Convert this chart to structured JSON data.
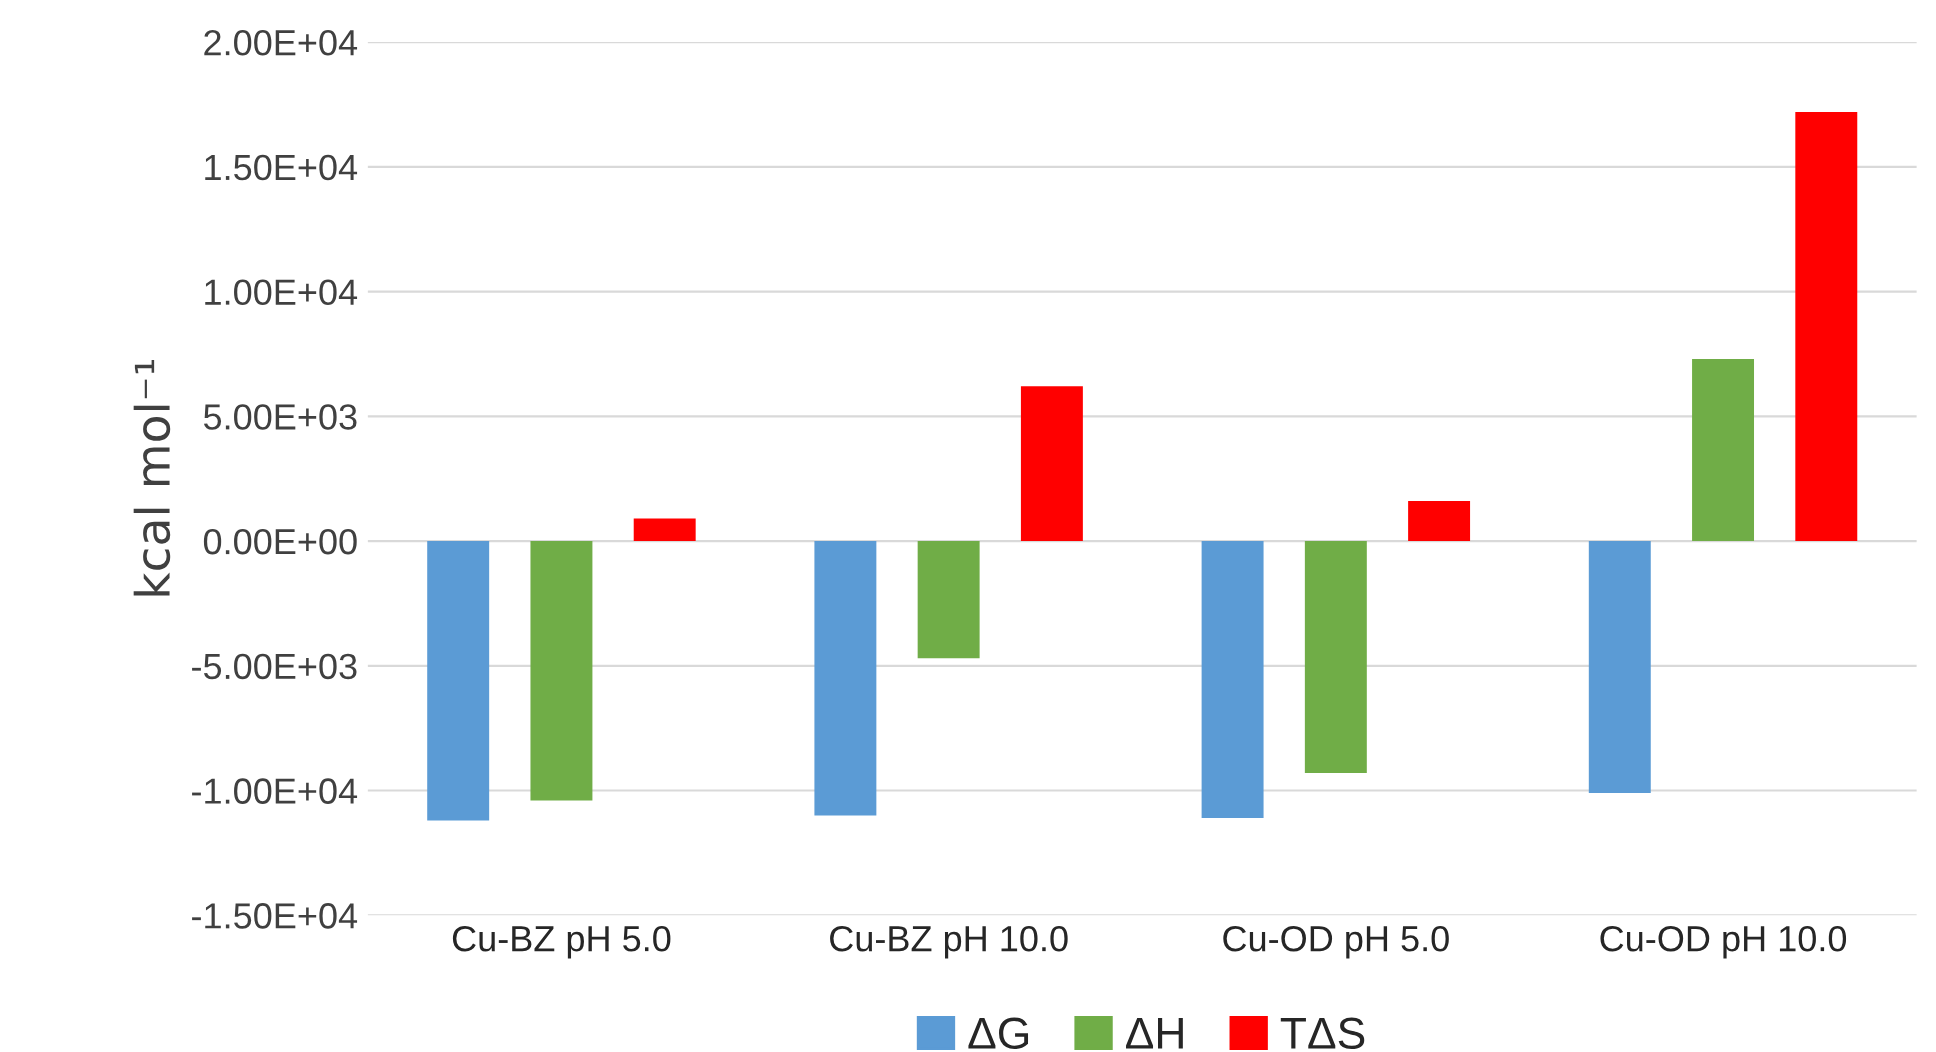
{
  "chart_data": {
    "type": "bar",
    "ylabel": "kcal mol⁻¹",
    "categories": [
      "Cu-BZ pH 5.0",
      "Cu-BZ pH 10.0",
      "Cu-OD pH 5.0",
      "Cu-OD pH 10.0"
    ],
    "series": [
      {
        "name": "ΔG",
        "color": "#5b9bd5",
        "values": [
          -11200,
          -11000,
          -11100,
          -10100
        ]
      },
      {
        "name": "ΔH",
        "color": "#70ad47",
        "values": [
          -10400,
          -4700,
          -9300,
          7300
        ]
      },
      {
        "name": "TΔS",
        "color": "#ff0000",
        "values": [
          900,
          6200,
          1600,
          17200
        ]
      }
    ],
    "ylim": [
      -15000,
      20000
    ],
    "yticks": [
      {
        "value": -15000,
        "label": "-1.50E+04"
      },
      {
        "value": -10000,
        "label": "-1.00E+04"
      },
      {
        "value": -5000,
        "label": "-5.00E+03"
      },
      {
        "value": 0,
        "label": "0.00E+00"
      },
      {
        "value": 5000,
        "label": "5.00E+03"
      },
      {
        "value": 10000,
        "label": "1.00E+04"
      },
      {
        "value": 15000,
        "label": "1.50E+04"
      },
      {
        "value": 20000,
        "label": "2.00E+04"
      }
    ],
    "grid": "y",
    "legend": "bottom"
  }
}
